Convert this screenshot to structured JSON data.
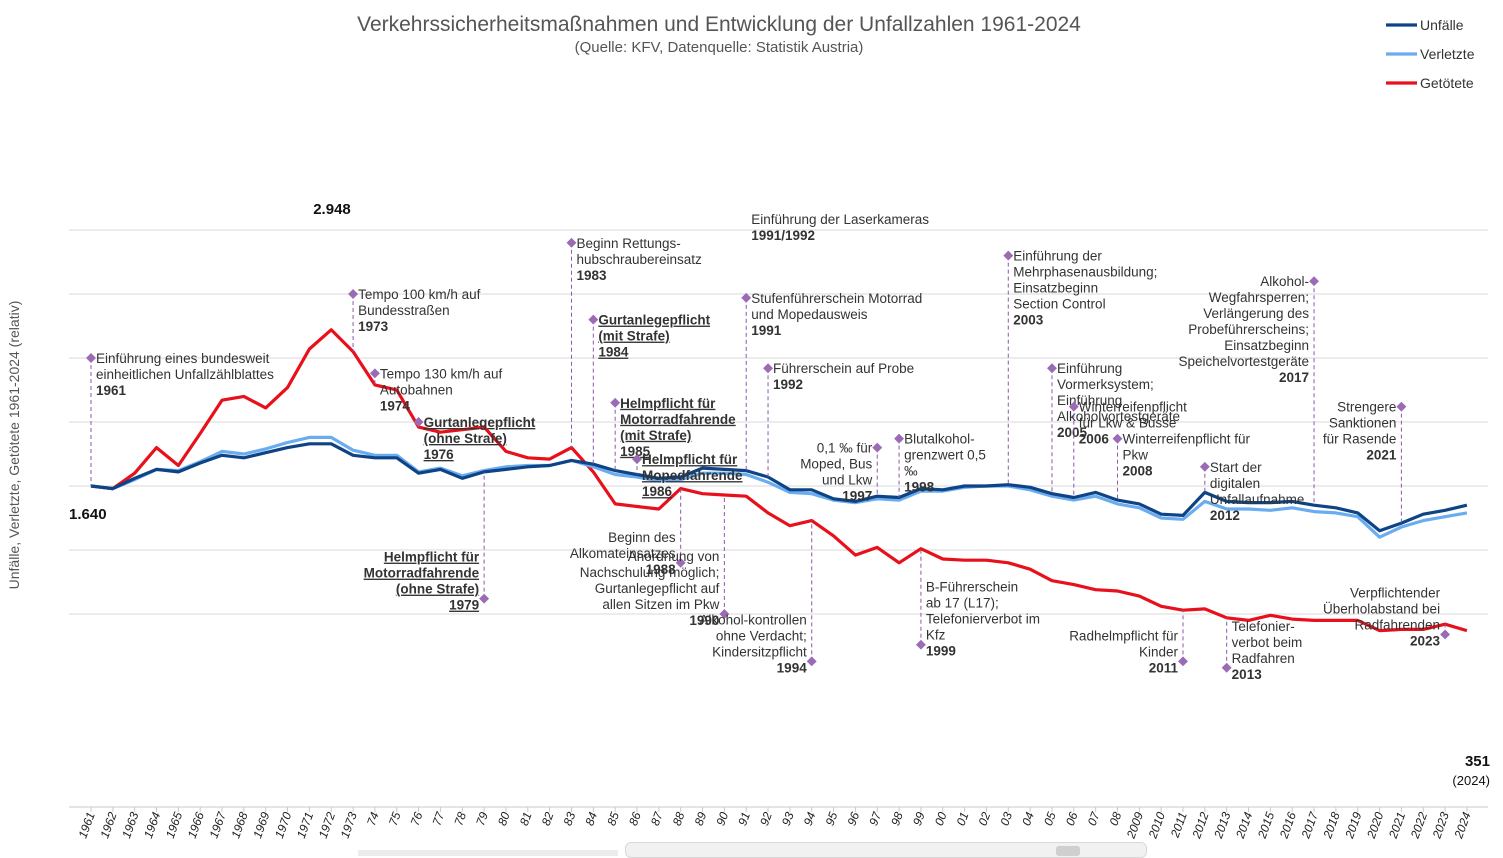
{
  "chart_data": {
    "type": "line",
    "title": "Verkehrssicherheitsmaßnahmen und Entwicklung der Unfallzahlen 1961-2024",
    "subtitle": "(Quelle: KFV, Datenquelle: Statistik Austria)",
    "ylabel": "Unfälle, Verletzte, Getötete 1961-2024 (relativ)",
    "xlabel": "",
    "ylim": [
      -30,
      320
    ],
    "grid": true,
    "legend_position": "top-right",
    "categories": [
      "1961",
      "1962",
      "1963",
      "1964",
      "1965",
      "1966",
      "1967",
      "1968",
      "1969",
      "1970",
      "1971",
      "1972",
      "1973",
      "74",
      "75",
      "76",
      "77",
      "78",
      "79",
      "80",
      "81",
      "82",
      "83",
      "84",
      "85",
      "86",
      "87",
      "88",
      "89",
      "90",
      "91",
      "92",
      "93",
      "94",
      "95",
      "96",
      "97",
      "98",
      "99",
      "00",
      "01",
      "02",
      "03",
      "04",
      "05",
      "06",
      "07",
      "08",
      "2009",
      "2010",
      "2011",
      "2012",
      "2013",
      "2014",
      "2015",
      "2016",
      "2017",
      "2018",
      "2019",
      "2020",
      "2021",
      "2022",
      "2023",
      "2024"
    ],
    "series": [
      {
        "name": "Unfälle",
        "color": "#0e4486",
        "values": [
          100,
          98,
          106,
          113,
          111,
          118,
          124,
          122,
          126,
          130,
          133,
          133,
          124,
          122,
          122,
          110,
          113,
          106,
          111,
          113,
          115,
          116,
          120,
          117,
          112,
          109,
          106,
          107,
          114,
          113,
          112,
          107,
          97,
          97,
          90,
          88,
          92,
          91,
          98,
          97,
          100,
          100,
          101,
          99,
          94,
          91,
          95,
          89,
          86,
          78,
          77,
          95,
          88,
          87,
          87,
          88,
          85,
          83,
          79,
          65,
          71,
          78,
          81,
          85
        ]
      },
      {
        "name": "Verletzte",
        "color": "#6aacf0",
        "values": [
          100,
          98,
          105,
          113,
          112,
          119,
          127,
          125,
          129,
          134,
          138,
          138,
          128,
          124,
          124,
          111,
          114,
          108,
          112,
          115,
          116,
          116,
          120,
          115,
          109,
          107,
          104,
          105,
          110,
          110,
          109,
          103,
          95,
          94,
          89,
          87,
          90,
          89,
          96,
          96,
          99,
          100,
          100,
          97,
          92,
          89,
          92,
          86,
          83,
          75,
          74,
          88,
          82,
          82,
          81,
          83,
          80,
          79,
          76,
          60,
          68,
          73,
          76,
          79
        ]
      },
      {
        "name": "Getötete",
        "color": "#e8101b",
        "values": [
          100,
          98,
          110,
          130,
          116,
          141,
          167,
          170,
          161,
          177,
          207,
          222,
          205,
          179,
          175,
          146,
          142,
          144,
          146,
          127,
          122,
          121,
          130,
          111,
          86,
          84,
          82,
          98,
          94,
          93,
          92,
          79,
          69,
          73,
          61,
          46,
          52,
          40,
          51,
          43,
          42,
          42,
          40,
          35,
          26,
          23,
          19,
          18,
          14,
          6,
          3,
          4,
          -3,
          -5,
          -1,
          -4,
          -5,
          -5,
          -5,
          -13,
          -12,
          -12,
          -8,
          -13
        ]
      }
    ],
    "data_labels": [
      {
        "text": "1.640",
        "series": "Unfälle",
        "year": "1961"
      },
      {
        "text": "2.948",
        "series": "Getötete",
        "year": "1972"
      },
      {
        "text": "351",
        "sub": "(2024)",
        "series": "Getötete",
        "year": "2024"
      }
    ],
    "annotations": [
      {
        "id": "a1961",
        "year": "1961",
        "yv": 200,
        "anchor": "start",
        "lines": [
          "Einführung eines bundesweit",
          "einheitlichen Unfallzählblattes"
        ],
        "year_label": "1961",
        "style": "normal"
      },
      {
        "id": "a1973",
        "year": "1973",
        "yv": 250,
        "anchor": "start",
        "lines": [
          "Tempo 100 km/h auf",
          "Bundesstraßen"
        ],
        "year_label": "1973",
        "style": "normal"
      },
      {
        "id": "a1974",
        "year": "74",
        "yv": 188,
        "anchor": "start",
        "lines": [
          "Tempo 130 km/h auf",
          "Autobahnen"
        ],
        "year_label": "1974",
        "style": "normal"
      },
      {
        "id": "a1976",
        "year": "76",
        "yv": 150,
        "anchor": "start",
        "lines": [
          "Gurtanlegepflicht",
          "(ohne Strafe)"
        ],
        "year_label": "1976",
        "style": "underline"
      },
      {
        "id": "a1979",
        "year": "79",
        "yv": 12,
        "anchor": "end",
        "lines": [
          "Helmpflicht für",
          "Motorradfahrende",
          "(ohne Strafe)"
        ],
        "year_label": "1979",
        "style": "underline"
      },
      {
        "id": "a1983",
        "year": "83",
        "yv": 290,
        "anchor": "start",
        "lines": [
          "Beginn Rettungs-",
          "hubschraubereinsatz"
        ],
        "year_label": "1983",
        "style": "normal"
      },
      {
        "id": "a1984",
        "year": "84",
        "yv": 230,
        "anchor": "start",
        "lines": [
          "Gurtanlegepflicht",
          "(mit Strafe)"
        ],
        "year_label": "1984",
        "style": "underline"
      },
      {
        "id": "a1985",
        "year": "85",
        "yv": 165,
        "anchor": "start",
        "lines": [
          "Helmpflicht für",
          "Motorradfahrende",
          "(mit Strafe)"
        ],
        "year_label": "1985",
        "style": "underline"
      },
      {
        "id": "a1986",
        "year": "86",
        "yv": 121,
        "anchor": "start",
        "lines": [
          "Helmpflicht für",
          "Mopedfahrende"
        ],
        "year_label": "1986",
        "style": "underline"
      },
      {
        "id": "a1988",
        "year": "88",
        "yv": 40,
        "anchor": "end",
        "lines": [
          "Beginn des",
          "Alkomateinsatzes"
        ],
        "year_label": "1988",
        "style": "normal"
      },
      {
        "id": "a1990",
        "year": "90",
        "yv": 0,
        "anchor": "end",
        "lines": [
          "Anordnung von",
          "Nachschulung möglich;",
          "Gurtanlegepflicht auf",
          "allen Sitzen im Pkw"
        ],
        "year_label": "1990",
        "style": "normal"
      },
      {
        "id": "a1991",
        "year": "91",
        "yv": 247,
        "anchor": "start",
        "lines": [
          "Stufenführerschein Motorrad",
          "und Mopedausweis"
        ],
        "year_label": "1991",
        "style": "normal"
      },
      {
        "id": "a1991b",
        "year": "91",
        "yv": null,
        "anchor": "start",
        "lines": [
          "Einführung der Laserkameras"
        ],
        "year_label": "1991/1992",
        "style": "normal",
        "no_marker": true
      },
      {
        "id": "a1992",
        "year": "92",
        "yv": 192,
        "anchor": "start",
        "lines": [
          "Führerschein auf Probe"
        ],
        "year_label": "1992",
        "style": "normal"
      },
      {
        "id": "a1994",
        "year": "94",
        "yv": -37,
        "anchor": "end",
        "lines": [
          "Alkohol-kontrollen",
          "ohne Verdacht;",
          "Kindersitzpflicht"
        ],
        "year_label": "1994",
        "style": "normal"
      },
      {
        "id": "a1997",
        "year": "97",
        "yv": 130,
        "anchor": "end",
        "lines": [
          "0,1 ‰ für",
          "Moped, Bus",
          "und Lkw"
        ],
        "year_label": "1997",
        "style": "normal"
      },
      {
        "id": "a1998",
        "year": "98",
        "yv": 137,
        "anchor": "start",
        "lines": [
          "Blutalkohol-",
          "grenzwert 0,5",
          "‰"
        ],
        "year_label": "1998",
        "style": "normal"
      },
      {
        "id": "a1999",
        "year": "99",
        "yv": -24,
        "anchor": "start",
        "lines": [
          "B-Führerschein",
          "ab 17 (L17);",
          "Telefonierverbot im",
          "Kfz"
        ],
        "year_label": "1999",
        "style": "normal"
      },
      {
        "id": "a2003",
        "year": "03",
        "yv": 280,
        "anchor": "start",
        "lines": [
          "Einführung der",
          "Mehrphasenausbildung;",
          "Einsatzbeginn",
          "Section Control"
        ],
        "year_label": "2003",
        "style": "normal"
      },
      {
        "id": "a2005",
        "year": "05",
        "yv": 192,
        "anchor": "start",
        "lines": [
          "Einführung",
          "Vormerksystem;",
          "Einführung",
          "Alkoholvortestgeräte"
        ],
        "year_label": "2005",
        "style": "normal"
      },
      {
        "id": "a2006",
        "year": "06",
        "yv": 162,
        "anchor": "start",
        "lines": [
          "Winterreifenpflicht",
          "für Lkw & Busse"
        ],
        "year_label": "2006",
        "style": "normal"
      },
      {
        "id": "a2008",
        "year": "08",
        "yv": 137,
        "anchor": "start",
        "lines": [
          "Winterreifenpflicht für",
          "Pkw"
        ],
        "year_label": "2008",
        "style": "normal"
      },
      {
        "id": "a2011",
        "year": "2011",
        "yv": -37,
        "anchor": "end",
        "lines": [
          "Radhelmpflicht für",
          "Kinder"
        ],
        "year_label": "2011",
        "style": "normal"
      },
      {
        "id": "a2012",
        "year": "2012",
        "yv": 115,
        "anchor": "start",
        "lines": [
          "Start der",
          "digitalen",
          "Unfallaufnahme"
        ],
        "year_label": "2012",
        "style": "normal"
      },
      {
        "id": "a2013",
        "year": "2013",
        "yv": -42,
        "anchor": "start",
        "lines": [
          "Telefonier-",
          "verbot beim",
          "Radfahren"
        ],
        "year_label": "2013",
        "style": "normal"
      },
      {
        "id": "a2017",
        "year": "2017",
        "yv": 260,
        "anchor": "end",
        "lines": [
          "Alkohol-",
          "Wegfahrsperren;",
          "Verlängerung des",
          "Probeführerscheins;",
          "Einsatzbeginn",
          "Speichelvortestgeräte"
        ],
        "year_label": "2017",
        "style": "normal"
      },
      {
        "id": "a2021",
        "year": "2021",
        "yv": 162,
        "anchor": "end",
        "lines": [
          "Strengere",
          "Sanktionen",
          "für Rasende"
        ],
        "year_label": "2021",
        "style": "normal"
      },
      {
        "id": "a2023",
        "year": "2023",
        "yv": -16,
        "anchor": "end",
        "lines": [
          "Verpflichtender",
          "Überholabstand bei",
          "Radfahrenden"
        ],
        "year_label": "2023",
        "style": "normal"
      }
    ]
  }
}
